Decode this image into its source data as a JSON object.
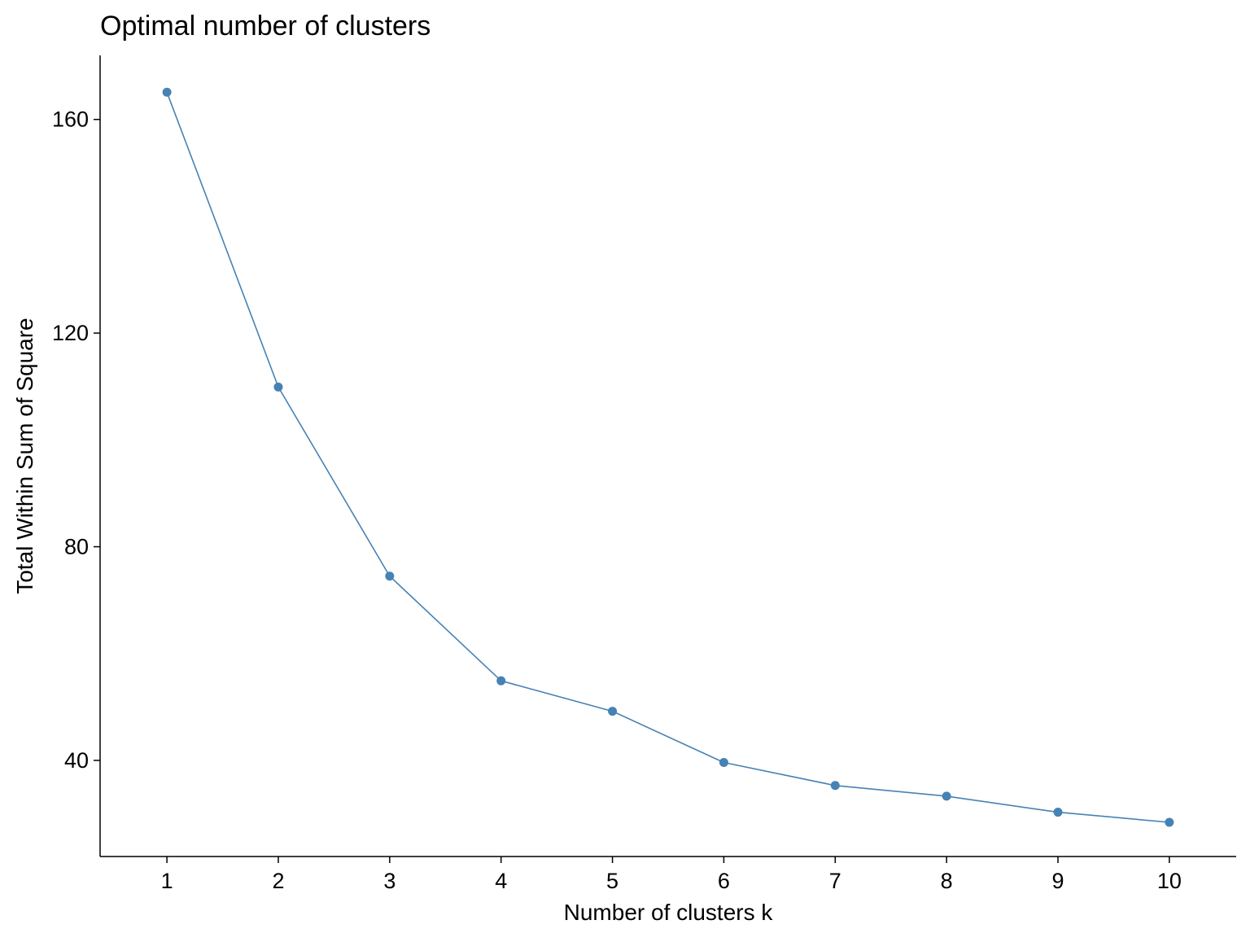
{
  "chart_data": {
    "type": "line",
    "title": "Optimal number of clusters",
    "xlabel": "Number of clusters k",
    "ylabel": "Total Within Sum of Square",
    "x": [
      1,
      2,
      3,
      4,
      5,
      6,
      7,
      8,
      9,
      10
    ],
    "x_tick_labels": [
      "1",
      "2",
      "3",
      "4",
      "5",
      "6",
      "7",
      "8",
      "9",
      "10"
    ],
    "y_ticks": [
      40,
      80,
      120,
      160
    ],
    "y_tick_labels": [
      "40",
      "80",
      "120",
      "160"
    ],
    "xlim": [
      0.4,
      10.6
    ],
    "ylim": [
      22,
      172
    ],
    "grid": false,
    "legend": "none",
    "series": [
      {
        "values": [
          165.1,
          109.9,
          74.5,
          54.9,
          49.2,
          39.6,
          35.3,
          33.3,
          30.3,
          28.4
        ],
        "color": "#4682b4",
        "markers": true
      }
    ]
  }
}
